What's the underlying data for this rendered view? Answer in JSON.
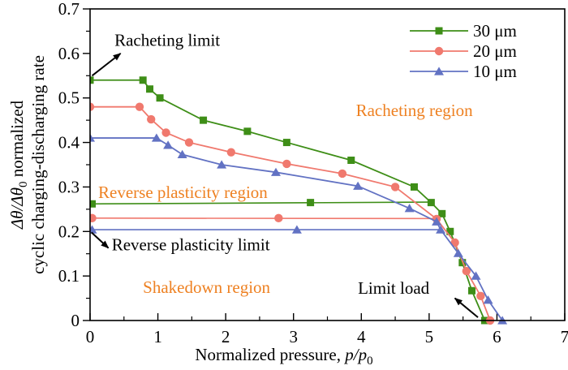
{
  "figure_title": "Shakedown map: normalized cyclic charging-discharging rate vs normalized pressure",
  "chart_data": {
    "type": "line",
    "xlabel": {
      "prefix": "Normalized pressure, ",
      "italic": "p/p",
      "sub": "0"
    },
    "ylabel": {
      "line1_italic": "Δθ/Δθ",
      "line1_sub": "0",
      "line1_rest": " normalized",
      "line2": "cyclic charging-discharging rate"
    },
    "xlim": [
      0,
      7
    ],
    "ylim": [
      0,
      0.7
    ],
    "x_tick_labels": [
      "0",
      "1",
      "2",
      "3",
      "4",
      "5",
      "6",
      "7"
    ],
    "y_tick_labels": [
      "0",
      "0.1",
      "0.2",
      "0.3",
      "0.4",
      "0.5",
      "0.6",
      "0.7"
    ],
    "x_major_step": 1,
    "x_minor_step": 0.5,
    "y_major_step": 0.1,
    "y_minor_step": 0.05,
    "grid": false,
    "legend_position": "top-right",
    "series": [
      {
        "name": "30 μm",
        "color": "#3e8e17",
        "marker": "square",
        "points": [
          [
            0,
            0.54
          ],
          [
            0.78,
            0.54
          ],
          [
            0.88,
            0.52
          ],
          [
            1.03,
            0.5
          ],
          [
            1.67,
            0.45
          ],
          [
            2.32,
            0.425
          ],
          [
            2.9,
            0.4
          ],
          [
            3.85,
            0.36
          ],
          [
            4.78,
            0.3
          ],
          [
            5.03,
            0.265
          ],
          [
            5.19,
            0.24
          ],
          [
            5.31,
            0.2
          ],
          [
            5.49,
            0.13
          ],
          [
            5.63,
            0.067
          ],
          [
            5.82,
            0
          ]
        ]
      },
      {
        "name": "20 μm",
        "color": "#f0796e",
        "marker": "circle",
        "points": [
          [
            0,
            0.48
          ],
          [
            0.73,
            0.48
          ],
          [
            0.9,
            0.452
          ],
          [
            1.12,
            0.422
          ],
          [
            1.46,
            0.4
          ],
          [
            2.08,
            0.378
          ],
          [
            2.9,
            0.352
          ],
          [
            3.72,
            0.33
          ],
          [
            4.5,
            0.3
          ],
          [
            5.11,
            0.228
          ],
          [
            5.38,
            0.175
          ],
          [
            5.55,
            0.111
          ],
          [
            5.76,
            0.055
          ],
          [
            5.9,
            0
          ]
        ]
      },
      {
        "name": "10 μm",
        "color": "#6272c3",
        "marker": "triangle",
        "points": [
          [
            0,
            0.41
          ],
          [
            0.98,
            0.41
          ],
          [
            1.15,
            0.394
          ],
          [
            1.36,
            0.373
          ],
          [
            1.94,
            0.35
          ],
          [
            2.74,
            0.333
          ],
          [
            3.95,
            0.302
          ],
          [
            4.71,
            0.252
          ],
          [
            5.11,
            0.222
          ],
          [
            5.17,
            0.204
          ],
          [
            5.43,
            0.151
          ],
          [
            5.69,
            0.1
          ],
          [
            5.87,
            0.046
          ],
          [
            6.08,
            0
          ]
        ]
      }
    ],
    "limit_lines": [
      {
        "name": "30 μm reverse plasticity limit",
        "color": "#3e8e17",
        "marker": "square",
        "points": [
          [
            0,
            0.262
          ],
          [
            5.03,
            0.266
          ]
        ],
        "markers": [
          [
            0.03,
            0.262
          ],
          [
            3.25,
            0.265
          ]
        ]
      },
      {
        "name": "20 μm reverse plasticity limit",
        "color": "#f0796e",
        "marker": "circle",
        "points": [
          [
            0,
            0.23
          ],
          [
            5.11,
            0.229
          ]
        ],
        "markers": [
          [
            0.03,
            0.23
          ],
          [
            2.78,
            0.23
          ]
        ]
      },
      {
        "name": "10 μm reverse plasticity limit",
        "color": "#6272c3",
        "marker": "triangle",
        "points": [
          [
            0,
            0.204
          ],
          [
            5.17,
            0.204
          ]
        ],
        "markers": [
          [
            0.03,
            0.204
          ],
          [
            3.05,
            0.204
          ]
        ]
      }
    ],
    "annotations": [
      {
        "text": "Racheting limit",
        "color": "#000000",
        "x": 0.36,
        "y": 0.63,
        "arrow": {
          "from": [
            0.03,
            0.55
          ],
          "to": [
            0.45,
            0.6
          ]
        }
      },
      {
        "text": "Racheting region",
        "color": "#ee8122",
        "x": 3.92,
        "y": 0.472
      },
      {
        "text": "Reverse plasticity region",
        "color": "#ee8122",
        "x": 0.12,
        "y": 0.288
      },
      {
        "text": "Reverse plasticity limit",
        "color": "#000000",
        "x": 0.32,
        "y": 0.17,
        "arrow": {
          "from": [
            0.02,
            0.198
          ],
          "to": [
            0.27,
            0.163
          ]
        }
      },
      {
        "text": "Shakedown region",
        "color": "#ee8122",
        "x": 0.78,
        "y": 0.075
      },
      {
        "text": "Limit load",
        "color": "#000000",
        "x": 3.95,
        "y": 0.073,
        "arrow": {
          "from": [
            5.72,
            0.007
          ],
          "to": [
            5.38,
            0.05
          ]
        }
      }
    ],
    "legend": {
      "items": [
        "30 μm",
        "20 μm",
        "10 μm"
      ]
    },
    "colors": {
      "axis": "#000000",
      "background": "#ffffff",
      "region_label": "#ee8122"
    }
  }
}
